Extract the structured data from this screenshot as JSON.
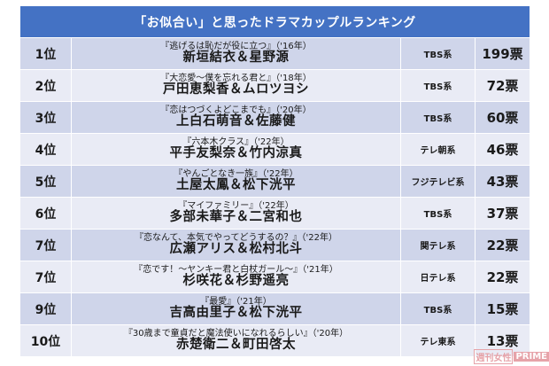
{
  "header": {
    "title": "「お似合い」と思ったドラマカップルランキング"
  },
  "rows": [
    {
      "rank": "1位",
      "title": "『逃げるは恥だが役に立つ』（'16年）",
      "couple": "新垣結衣＆星野源",
      "network": "TBS系",
      "votes": "199票"
    },
    {
      "rank": "2位",
      "title": "『大恋愛〜僕を忘れる君と』（'18年）",
      "couple": "戸田恵梨香＆ムロツヨシ",
      "network": "TBS系",
      "votes": "72票"
    },
    {
      "rank": "3位",
      "title": "『恋はつづくよどこまでも』（'20年）",
      "couple": "上白石萌音＆佐藤健",
      "network": "TBS系",
      "votes": "60票"
    },
    {
      "rank": "4位",
      "title": "『六本木クラス』（'22年）",
      "couple": "平手友梨奈＆竹内涼真",
      "network": "テレ朝系",
      "votes": "46票"
    },
    {
      "rank": "5位",
      "title": "『やんごとなき一族』（'22年）",
      "couple": "土屋太鳳＆松下洸平",
      "network": "フジテレビ系",
      "votes": "43票"
    },
    {
      "rank": "6位",
      "title": "『マイファミリー』（'22年）",
      "couple": "多部未華子＆二宮和也",
      "network": "TBS系",
      "votes": "37票"
    },
    {
      "rank": "7位",
      "title": "『恋なんて、本気でやってどうするの？』（'22年）",
      "couple": "広瀬アリス＆松村北斗",
      "network": "関テレ系",
      "votes": "22票"
    },
    {
      "rank": "7位",
      "title": "『恋です！〜ヤンキー君と白杖ガール〜』（'21年）",
      "couple": "杉咲花＆杉野遥亮",
      "network": "日テレ系",
      "votes": "22票"
    },
    {
      "rank": "9位",
      "title": "『最愛』（'21年）",
      "couple": "吉高由里子＆松下洸平",
      "network": "TBS系",
      "votes": "15票"
    },
    {
      "rank": "10位",
      "title": "『30歳まで童貞だと魔法使いになれるらしい』（'20年）",
      "couple": "赤楚衛二＆町田啓太",
      "network": "テレ東系",
      "votes": "13票"
    }
  ],
  "watermark": {
    "part1": "週刊女性",
    "part2": "PRIME"
  },
  "colors": {
    "header": "#4472c4",
    "row_odd": "#cfd5ea",
    "row_even": "#e9ebf5",
    "watermark": "#e6a3a9"
  }
}
